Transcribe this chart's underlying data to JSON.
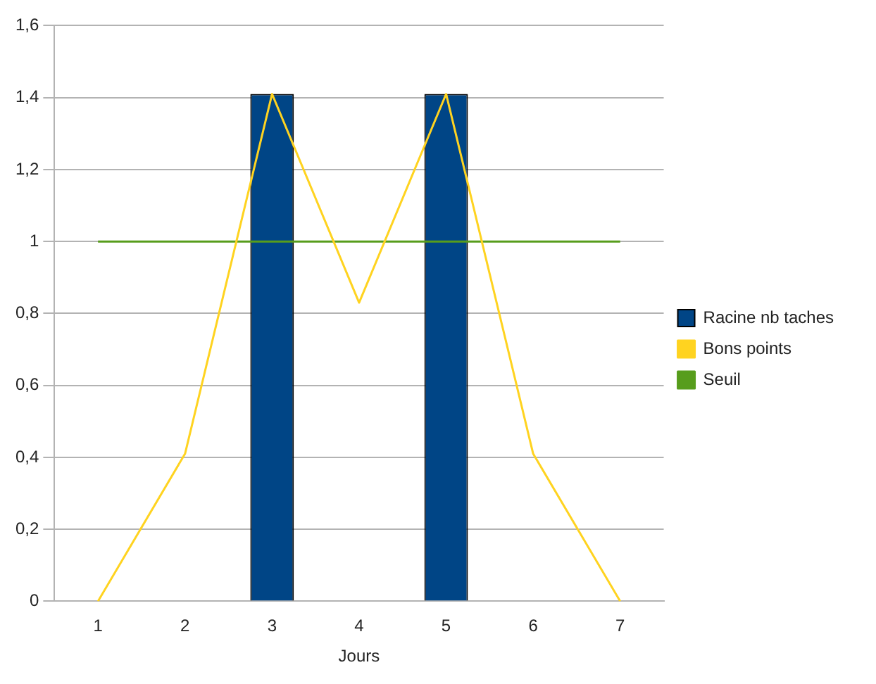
{
  "chart_data": {
    "type": "bar",
    "xlabel": "Jours",
    "categories": [
      "1",
      "2",
      "3",
      "4",
      "5",
      "6",
      "7"
    ],
    "series": [
      {
        "name": "Racine nb taches",
        "color": "#004586",
        "values": [
          0,
          0,
          1.41,
          0,
          1.41,
          0,
          0
        ]
      },
      {
        "name": "Bons points",
        "type": "line",
        "color": "#ffd320",
        "values": [
          0,
          0.41,
          1.41,
          0.83,
          1.41,
          0.41,
          0
        ]
      },
      {
        "name": "Seuil",
        "type": "line",
        "color": "#579d1c",
        "values": [
          1,
          1,
          1,
          1,
          1,
          1,
          1
        ]
      }
    ],
    "ylim": [
      0,
      1.6
    ],
    "yticks": [
      {
        "value": 0,
        "label": "0"
      },
      {
        "value": 0.2,
        "label": "0,2"
      },
      {
        "value": 0.4,
        "label": "0,4"
      },
      {
        "value": 0.6,
        "label": "0,6"
      },
      {
        "value": 0.8,
        "label": "0,8"
      },
      {
        "value": 1,
        "label": "1"
      },
      {
        "value": 1.2,
        "label": "1,2"
      },
      {
        "value": 1.4,
        "label": "1,4"
      },
      {
        "value": 1.6,
        "label": "1,6"
      }
    ],
    "grid": "y",
    "legend": "right",
    "marker": "none"
  }
}
